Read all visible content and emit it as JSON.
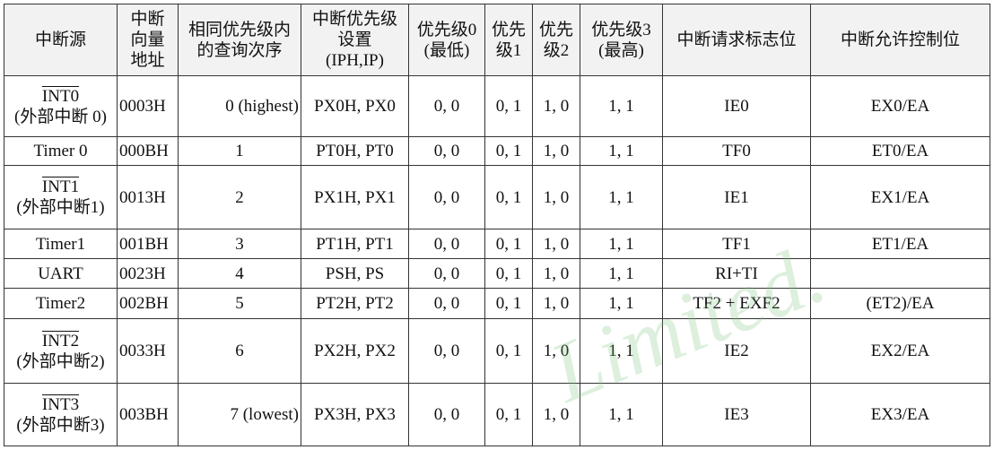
{
  "table": {
    "header": [
      [
        "中断源"
      ],
      [
        "中断",
        "向量",
        "地址"
      ],
      [
        "相同优先级内",
        "的查询次序"
      ],
      [
        "中断优先级",
        "设置",
        "(IPH,IP)"
      ],
      [
        "优先级0",
        "(最低)"
      ],
      [
        "优先",
        "级1"
      ],
      [
        "优先",
        "级2"
      ],
      [
        "优先级3",
        "(最高)"
      ],
      [
        "中断请求标志位"
      ],
      [
        "中断允许控制位"
      ]
    ],
    "rows": [
      [
        {
          "signal": "INT0",
          "note": "(外部中断 0)"
        },
        "0003H",
        "0 (highest)",
        "PX0H, PX0",
        "0, 0",
        "0, 1",
        "1, 0",
        "1, 1",
        "IE0",
        "EX0/EA"
      ],
      [
        "Timer 0",
        "000BH",
        "1",
        "PT0H, PT0",
        "0, 0",
        "0, 1",
        "1, 0",
        "1, 1",
        "TF0",
        "ET0/EA"
      ],
      [
        {
          "signal": "INT1",
          "note": "(外部中断1)"
        },
        "0013H",
        "2",
        "PX1H, PX1",
        "0, 0",
        "0, 1",
        "1, 0",
        "1, 1",
        "IE1",
        "EX1/EA"
      ],
      [
        "Timer1",
        "001BH",
        "3",
        "PT1H, PT1",
        "0, 0",
        "0, 1",
        "1, 0",
        "1, 1",
        "TF1",
        "ET1/EA"
      ],
      [
        "UART",
        "0023H",
        "4",
        "PSH, PS",
        "0, 0",
        "0, 1",
        "1, 0",
        "1, 1",
        "RI+TI",
        null
      ],
      [
        "Timer2",
        "002BH",
        "5",
        "PT2H, PT2",
        "0, 0",
        "0, 1",
        "1, 0",
        "1, 1",
        "TF2 + EXF2",
        "(ET2)/EA"
      ],
      [
        {
          "signal": "INT2",
          "note": "(外部中断2)"
        },
        "0033H",
        "6",
        "PX2H, PX2",
        "0, 0",
        "0, 1",
        "1, 0",
        "1, 1",
        "IE2",
        "EX2/EA"
      ],
      [
        {
          "signal": "INT3",
          "note": "(外部中断3)"
        },
        "003BH",
        "7 (lowest)",
        "PX3H, PX3",
        "0, 0",
        "0, 1",
        "1, 0",
        "1, 1",
        "IE3",
        "EX3/EA"
      ]
    ],
    "watermark": "Limited."
  }
}
